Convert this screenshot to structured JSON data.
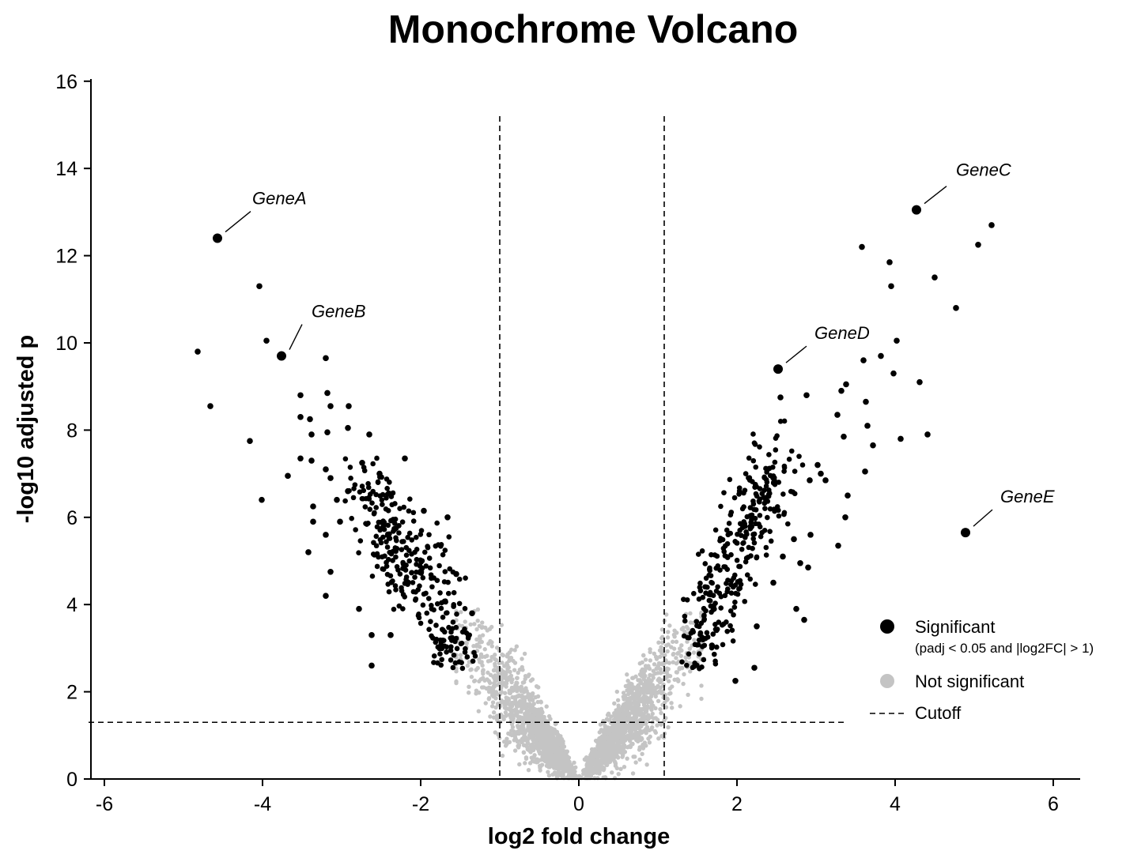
{
  "chart_data": {
    "type": "scatter",
    "title": "Monochrome Volcano",
    "xlabel": "log2 fold change",
    "ylabel": "-log10 adjusted p",
    "xlim": [
      -6.2,
      6.35
    ],
    "ylim": [
      0,
      16
    ],
    "xticks": [
      -6,
      -4,
      -2,
      0,
      2,
      4,
      6
    ],
    "yticks": [
      0,
      2,
      4,
      6,
      8,
      10,
      12,
      14,
      16
    ],
    "xtick_labels": [
      "-6",
      "-4",
      "-2",
      "0",
      "2",
      "4",
      "6"
    ],
    "ytick_labels": [
      "0",
      "2",
      "4",
      "6",
      "8",
      "10",
      "12",
      "14",
      "16"
    ],
    "grid": false,
    "legend_position": "right",
    "cutoffs": {
      "x": [
        -1,
        1.08
      ],
      "y": 1.3,
      "horizontal_line_x_range": [
        -6.2,
        3.4
      ]
    },
    "colors": {
      "significant": "#000000",
      "not_significant": "#c4c4c4",
      "cutoff_line": "#000000"
    },
    "legend": [
      {
        "label": "Significant",
        "sublabel": "(padj < 0.05 and |log2FC| > 1)",
        "marker": "dot-black"
      },
      {
        "label": "Not significant",
        "marker": "dot-gray"
      },
      {
        "label": "Cutoff",
        "marker": "dashed-line"
      }
    ],
    "highlighted_genes": [
      {
        "name": "GeneA",
        "x": -4.57,
        "y": 12.4
      },
      {
        "name": "GeneB",
        "x": -3.76,
        "y": 9.7
      },
      {
        "name": "GeneC",
        "x": 4.27,
        "y": 13.05
      },
      {
        "name": "GeneD",
        "x": 2.52,
        "y": 9.4
      },
      {
        "name": "GeneE",
        "x": 4.89,
        "y": 5.65
      }
    ],
    "significant_points": [
      [
        -4.04,
        11.3
      ],
      [
        -3.95,
        10.05
      ],
      [
        -4.82,
        9.8
      ],
      [
        -4.66,
        8.55
      ],
      [
        -4.16,
        7.75
      ],
      [
        -4.01,
        6.4
      ],
      [
        -3.2,
        9.65
      ],
      [
        -3.52,
        8.8
      ],
      [
        -3.18,
        8.85
      ],
      [
        -3.14,
        8.55
      ],
      [
        -2.91,
        8.55
      ],
      [
        -3.52,
        8.3
      ],
      [
        -3.4,
        8.25
      ],
      [
        -3.18,
        7.95
      ],
      [
        -3.38,
        7.9
      ],
      [
        -2.92,
        8.05
      ],
      [
        -3.52,
        7.35
      ],
      [
        -3.38,
        7.3
      ],
      [
        -3.68,
        6.95
      ],
      [
        -3.2,
        7.1
      ],
      [
        -3.14,
        6.9
      ],
      [
        -3.06,
        6.4
      ],
      [
        -2.92,
        6.6
      ],
      [
        -3.36,
        6.25
      ],
      [
        -3.36,
        5.9
      ],
      [
        -3.2,
        5.6
      ],
      [
        -3.02,
        5.9
      ],
      [
        -3.42,
        5.2
      ],
      [
        -3.14,
        4.75
      ],
      [
        -3.2,
        4.2
      ],
      [
        -2.78,
        3.9
      ],
      [
        -2.62,
        3.3
      ],
      [
        -2.38,
        3.3
      ],
      [
        -2.62,
        2.6
      ],
      [
        -1.66,
        6.0
      ],
      [
        -1.96,
        6.15
      ],
      [
        -1.55,
        4.7
      ],
      [
        -1.35,
        3.8
      ],
      [
        -2.2,
        7.35
      ],
      [
        -2.65,
        7.9
      ],
      [
        -2.52,
        7.0
      ],
      [
        -2.74,
        7.25
      ]
    ],
    "point_cloud_summary": {
      "significant_count_approx": 700,
      "not_significant_count_approx": 2400,
      "left_significant_center": [
        -2.1,
        4.9
      ],
      "right_significant_center": [
        1.95,
        4.95
      ]
    }
  }
}
